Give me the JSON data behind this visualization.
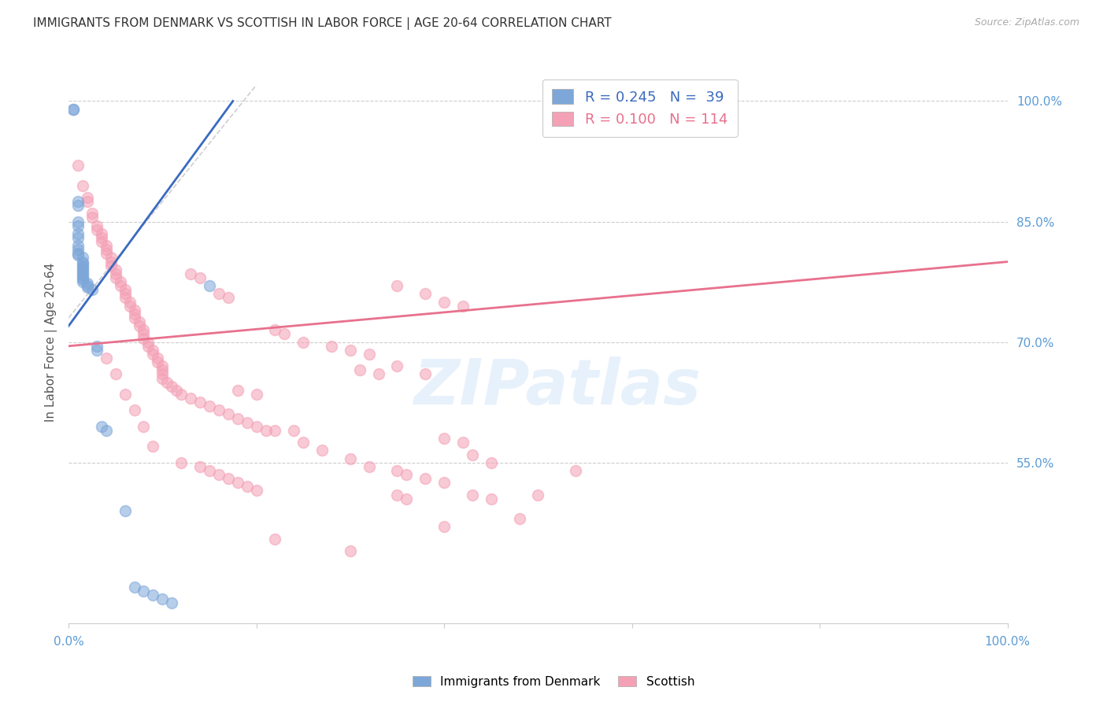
{
  "title": "IMMIGRANTS FROM DENMARK VS SCOTTISH IN LABOR FORCE | AGE 20-64 CORRELATION CHART",
  "source_text": "Source: ZipAtlas.com",
  "ylabel": "In Labor Force | Age 20-64",
  "watermark": "ZIPatlas",
  "denmark_color": "#7da7d9",
  "scottish_color": "#f4a0b5",
  "denmark_line_color": "#3a6bbf",
  "scottish_line_color": "#e8718d",
  "reference_line_color": "#cccccc",
  "grid_color": "#c8c8c8",
  "background_color": "#ffffff",
  "right_axis_color": "#5b9bd5",
  "y_tick_vals_right": [
    0.55,
    0.7,
    0.85,
    1.0
  ],
  "y_tick_labels_right": [
    "55.0%",
    "70.0%",
    "85.0%",
    "100.0%"
  ],
  "xlim": [
    0.0,
    1.0
  ],
  "ylim": [
    0.35,
    1.05
  ],
  "denmark_scatter": [
    [
      0.005,
      0.99
    ],
    [
      0.005,
      0.99
    ],
    [
      0.01,
      0.875
    ],
    [
      0.01,
      0.87
    ],
    [
      0.01,
      0.85
    ],
    [
      0.01,
      0.845
    ],
    [
      0.01,
      0.835
    ],
    [
      0.01,
      0.83
    ],
    [
      0.01,
      0.82
    ],
    [
      0.01,
      0.815
    ],
    [
      0.01,
      0.81
    ],
    [
      0.01,
      0.808
    ],
    [
      0.015,
      0.805
    ],
    [
      0.015,
      0.8
    ],
    [
      0.015,
      0.798
    ],
    [
      0.015,
      0.795
    ],
    [
      0.015,
      0.793
    ],
    [
      0.015,
      0.79
    ],
    [
      0.015,
      0.788
    ],
    [
      0.015,
      0.785
    ],
    [
      0.015,
      0.783
    ],
    [
      0.015,
      0.78
    ],
    [
      0.015,
      0.778
    ],
    [
      0.015,
      0.775
    ],
    [
      0.02,
      0.773
    ],
    [
      0.02,
      0.77
    ],
    [
      0.02,
      0.768
    ],
    [
      0.025,
      0.765
    ],
    [
      0.03,
      0.695
    ],
    [
      0.03,
      0.69
    ],
    [
      0.035,
      0.595
    ],
    [
      0.04,
      0.59
    ],
    [
      0.06,
      0.49
    ],
    [
      0.07,
      0.395
    ],
    [
      0.08,
      0.39
    ],
    [
      0.09,
      0.385
    ],
    [
      0.1,
      0.38
    ],
    [
      0.11,
      0.375
    ],
    [
      0.15,
      0.77
    ]
  ],
  "scottish_scatter": [
    [
      0.01,
      0.92
    ],
    [
      0.015,
      0.895
    ],
    [
      0.02,
      0.88
    ],
    [
      0.02,
      0.875
    ],
    [
      0.025,
      0.86
    ],
    [
      0.025,
      0.855
    ],
    [
      0.03,
      0.845
    ],
    [
      0.03,
      0.84
    ],
    [
      0.035,
      0.835
    ],
    [
      0.035,
      0.83
    ],
    [
      0.035,
      0.825
    ],
    [
      0.04,
      0.82
    ],
    [
      0.04,
      0.815
    ],
    [
      0.04,
      0.81
    ],
    [
      0.045,
      0.805
    ],
    [
      0.045,
      0.8
    ],
    [
      0.045,
      0.795
    ],
    [
      0.05,
      0.79
    ],
    [
      0.05,
      0.785
    ],
    [
      0.05,
      0.78
    ],
    [
      0.055,
      0.775
    ],
    [
      0.055,
      0.77
    ],
    [
      0.06,
      0.765
    ],
    [
      0.06,
      0.76
    ],
    [
      0.06,
      0.755
    ],
    [
      0.065,
      0.75
    ],
    [
      0.065,
      0.745
    ],
    [
      0.07,
      0.74
    ],
    [
      0.07,
      0.735
    ],
    [
      0.07,
      0.73
    ],
    [
      0.075,
      0.725
    ],
    [
      0.075,
      0.72
    ],
    [
      0.08,
      0.715
    ],
    [
      0.08,
      0.71
    ],
    [
      0.08,
      0.705
    ],
    [
      0.085,
      0.7
    ],
    [
      0.085,
      0.695
    ],
    [
      0.09,
      0.69
    ],
    [
      0.09,
      0.685
    ],
    [
      0.095,
      0.68
    ],
    [
      0.095,
      0.675
    ],
    [
      0.1,
      0.67
    ],
    [
      0.1,
      0.665
    ],
    [
      0.1,
      0.66
    ],
    [
      0.1,
      0.655
    ],
    [
      0.105,
      0.65
    ],
    [
      0.11,
      0.645
    ],
    [
      0.115,
      0.64
    ],
    [
      0.12,
      0.635
    ],
    [
      0.13,
      0.63
    ],
    [
      0.14,
      0.625
    ],
    [
      0.15,
      0.62
    ],
    [
      0.16,
      0.615
    ],
    [
      0.17,
      0.61
    ],
    [
      0.18,
      0.605
    ],
    [
      0.19,
      0.6
    ],
    [
      0.2,
      0.595
    ],
    [
      0.21,
      0.59
    ],
    [
      0.04,
      0.68
    ],
    [
      0.05,
      0.66
    ],
    [
      0.06,
      0.635
    ],
    [
      0.07,
      0.615
    ],
    [
      0.08,
      0.595
    ],
    [
      0.09,
      0.57
    ],
    [
      0.12,
      0.55
    ],
    [
      0.14,
      0.545
    ],
    [
      0.15,
      0.54
    ],
    [
      0.16,
      0.535
    ],
    [
      0.17,
      0.53
    ],
    [
      0.18,
      0.525
    ],
    [
      0.19,
      0.52
    ],
    [
      0.2,
      0.515
    ],
    [
      0.22,
      0.59
    ],
    [
      0.24,
      0.59
    ],
    [
      0.25,
      0.575
    ],
    [
      0.27,
      0.565
    ],
    [
      0.3,
      0.555
    ],
    [
      0.32,
      0.545
    ],
    [
      0.35,
      0.54
    ],
    [
      0.36,
      0.535
    ],
    [
      0.38,
      0.53
    ],
    [
      0.4,
      0.525
    ],
    [
      0.35,
      0.77
    ],
    [
      0.38,
      0.76
    ],
    [
      0.4,
      0.75
    ],
    [
      0.42,
      0.745
    ],
    [
      0.25,
      0.7
    ],
    [
      0.28,
      0.695
    ],
    [
      0.3,
      0.69
    ],
    [
      0.32,
      0.685
    ],
    [
      0.16,
      0.76
    ],
    [
      0.17,
      0.755
    ],
    [
      0.31,
      0.665
    ],
    [
      0.33,
      0.66
    ],
    [
      0.22,
      0.715
    ],
    [
      0.23,
      0.71
    ],
    [
      0.35,
      0.67
    ],
    [
      0.38,
      0.66
    ],
    [
      0.18,
      0.64
    ],
    [
      0.2,
      0.635
    ],
    [
      0.13,
      0.785
    ],
    [
      0.14,
      0.78
    ],
    [
      0.4,
      0.58
    ],
    [
      0.42,
      0.575
    ],
    [
      0.43,
      0.56
    ],
    [
      0.45,
      0.55
    ],
    [
      0.35,
      0.51
    ],
    [
      0.36,
      0.505
    ],
    [
      0.43,
      0.51
    ],
    [
      0.45,
      0.505
    ],
    [
      0.5,
      0.51
    ],
    [
      0.54,
      0.54
    ],
    [
      0.48,
      0.48
    ],
    [
      0.4,
      0.47
    ],
    [
      0.22,
      0.455
    ],
    [
      0.3,
      0.44
    ]
  ],
  "dk_trend_x": [
    0.0,
    0.175
  ],
  "dk_trend_y": [
    0.72,
    1.0
  ],
  "sc_trend_x": [
    0.0,
    1.0
  ],
  "sc_trend_y": [
    0.695,
    0.8
  ]
}
